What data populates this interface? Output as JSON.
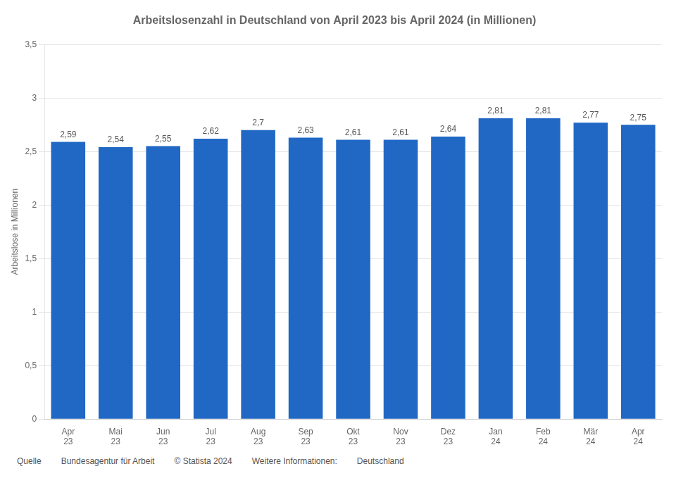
{
  "chart_data": {
    "type": "bar",
    "title": "Arbeitslosenzahl in Deutschland von April 2023 bis April 2024 (in Millionen)",
    "categories": [
      "Apr\n23",
      "Mai\n23",
      "Jun\n23",
      "Jul\n23",
      "Aug\n23",
      "Sep\n23",
      "Okt\n23",
      "Nov\n23",
      "Dez\n23",
      "Jan\n24",
      "Feb\n24",
      "Mär\n24",
      "Apr\n24"
    ],
    "values": [
      2.59,
      2.54,
      2.55,
      2.62,
      2.7,
      2.63,
      2.61,
      2.61,
      2.64,
      2.81,
      2.81,
      2.77,
      2.75
    ],
    "value_labels": [
      "2,59",
      "2,54",
      "2,55",
      "2,62",
      "2,7",
      "2,63",
      "2,61",
      "2,61",
      "2,64",
      "2,81",
      "2,81",
      "2,77",
      "2,75"
    ],
    "data_labels": true,
    "color": "#2068C4",
    "ylabel": "Arbeitslose in Millionen",
    "ylim": [
      0,
      3.5
    ],
    "yticks": [
      0,
      {
        "value": 0.5,
        "label": "0,5"
      },
      1,
      {
        "value": 1.5,
        "label": "1,5"
      },
      2,
      {
        "value": 2.5,
        "label": "2,5"
      },
      3,
      {
        "value": 3.5,
        "label": "3,5"
      }
    ],
    "grid": true,
    "annotations": [
      "Quelle",
      "Bundesagentur für Arbeit",
      "© Statista 2024",
      "Weitere Informationen:",
      "Deutschland"
    ]
  }
}
